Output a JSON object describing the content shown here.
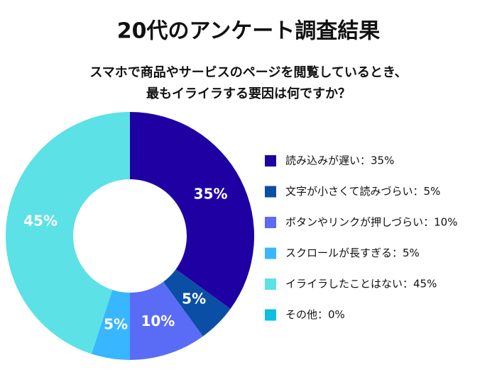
{
  "chart_data": {
    "type": "donut",
    "title": "20代のアンケート調査結果",
    "subtitle": [
      "スマホで商品やサービスのページを閲覧しているとき、",
      "最もイライラする要因は何ですか？"
    ],
    "categories": [
      "読み込みが遅い：35%",
      "文字が小さくて読みづらい：5%",
      "ボタンやリンクが押しづらい：10%",
      "スクロールが長すぎる：5%",
      "イライラしたことはない：45%",
      "その他：0%"
    ],
    "values": [
      35,
      5,
      10,
      5,
      45,
      0
    ],
    "value_labels": [
      "35%",
      "5%",
      "10%",
      "5%",
      "45%",
      null
    ],
    "colors": [
      "#1f00a3",
      "#0b4ea6",
      "#5a6cf5",
      "#38b6ff",
      "#5ce1e6",
      "#0cc0df"
    ]
  }
}
